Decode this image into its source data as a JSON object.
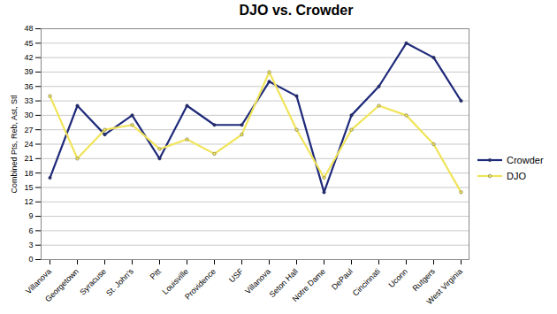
{
  "chart_data": {
    "type": "line",
    "title": "DJO vs. Crowder",
    "y_label": "Combined Pts, Reb, Ast, Stl",
    "categories": [
      "Villanova",
      "Georgetown",
      "Syracuse",
      "St. John's",
      "Pitt",
      "Louisville",
      "Providence",
      "USF",
      "Villanova",
      "Seton Hall",
      "Notre Dame",
      "DePaul",
      "Cincinnati",
      "Uconn",
      "Rutgers",
      "West Virginia"
    ],
    "series": [
      {
        "name": "Crowder",
        "color": "#1f2a7a",
        "values": [
          17,
          32,
          26,
          30,
          21,
          32,
          28,
          28,
          37,
          34,
          14,
          30,
          36,
          45,
          42,
          33
        ]
      },
      {
        "name": "DJO",
        "color": "#f0e45a",
        "values": [
          34,
          21,
          27,
          28,
          23,
          25,
          22,
          26,
          39,
          27,
          17,
          27,
          32,
          30,
          24,
          14
        ]
      }
    ],
    "ylim": [
      0,
      48
    ],
    "yticks": [
      0,
      3,
      6,
      9,
      12,
      15,
      18,
      21,
      24,
      27,
      30,
      33,
      36,
      39,
      42,
      45,
      48
    ],
    "grid": true,
    "legend": "right",
    "marker": "circle"
  }
}
